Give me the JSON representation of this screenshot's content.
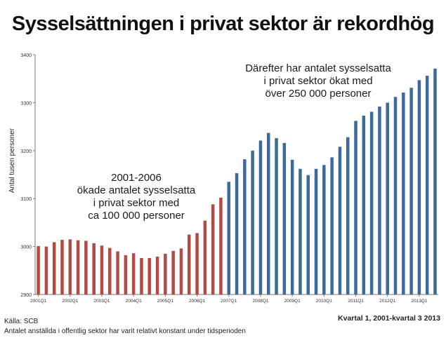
{
  "chart_data": {
    "type": "bar",
    "title": "Sysselsättningen i privat sektor är rekordhög",
    "xlabel": "",
    "ylabel": "Antal tusen personer",
    "ylim": [
      2900,
      3400
    ],
    "yticks": [
      2900,
      3000,
      3100,
      3200,
      3300,
      3400
    ],
    "grid": false,
    "x_tick_labels": [
      "2001Q1",
      "2002Q1",
      "2003Q1",
      "2004Q1",
      "2005Q1",
      "2006Q1",
      "2007Q1",
      "2008Q1",
      "2009Q1",
      "2010Q1",
      "2011Q1",
      "2012Q1",
      "2013Q1"
    ],
    "colors": {
      "period_2001_2006": "#b34a44",
      "period_2007_2013": "#3d6a9c"
    },
    "series": [
      {
        "values": [
          3001,
          3000,
          3009,
          3014,
          3015,
          3013,
          3012,
          3007,
          3002,
          2997,
          2990,
          2982,
          2986,
          2976,
          2976,
          2979,
          2985,
          2991,
          2996,
          3025,
          3028,
          3054,
          3088,
          3102
        ]
      },
      {
        "values": [
          3135,
          3153,
          3182,
          3200,
          3221,
          3237,
          3226,
          3216,
          3181,
          3162,
          3149,
          3162,
          3170,
          3186,
          3208,
          3228,
          3262,
          3273,
          3281,
          3292,
          3300,
          3312,
          3321,
          3331,
          3347,
          3356,
          3371
        ]
      }
    ],
    "annotations": [
      {
        "lines": [
          "2001-2006",
          "ökade antalet sysselsatta",
          "i privat sektor med",
          "ca 100 000 personer"
        ]
      },
      {
        "lines": [
          "Därefter har antalet sysselsatta",
          "i privat sektor ökat med",
          "över 250 000 personer"
        ]
      }
    ]
  },
  "footer": {
    "source": "Källa: SCB",
    "note": "Antalet anställda i offentlig sektor har varit relativt konstant under tidsperioden",
    "period": "Kvartal 1, 2001-kvartal 3 2013"
  }
}
